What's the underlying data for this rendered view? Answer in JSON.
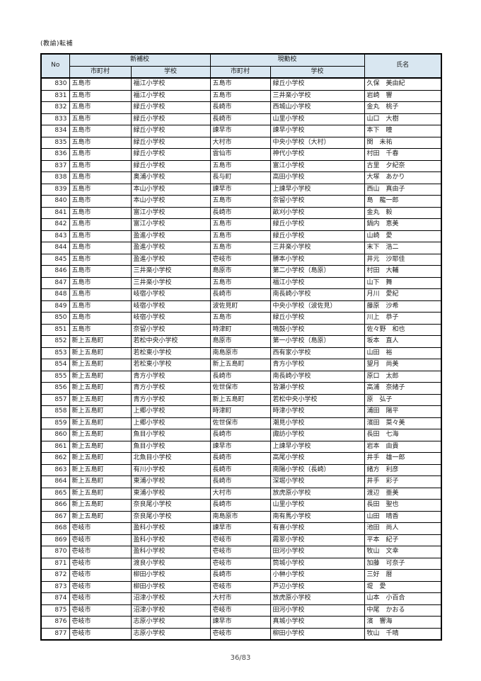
{
  "title": "(教諭)転補",
  "footer": {
    "page": "36/83"
  },
  "colors": {
    "header_bg": "#d9e7f1",
    "border": "#000000",
    "page_bg": "#ffffff"
  },
  "table": {
    "headers": {
      "no": "No",
      "new_school_group": "新補校",
      "current_school_group": "現勤校",
      "municipality_new": "市町村",
      "school_new": "学校",
      "municipality_current": "市町村",
      "school_current": "学校",
      "name": "氏名"
    },
    "rows": [
      [
        830,
        "五島市",
        "福江小学校",
        "五島市",
        "緑丘小学校",
        "久保　美由紀"
      ],
      [
        831,
        "五島市",
        "福江小学校",
        "五島市",
        "三井楽小学校",
        "岩崎　響"
      ],
      [
        832,
        "五島市",
        "緑丘小学校",
        "長崎市",
        "西城山小学校",
        "金丸　桃子"
      ],
      [
        833,
        "五島市",
        "緑丘小学校",
        "長崎市",
        "山里小学校",
        "山口　大樹"
      ],
      [
        834,
        "五島市",
        "緑丘小学校",
        "諫早市",
        "諫早小学校",
        "本下　瞳"
      ],
      [
        835,
        "五島市",
        "緑丘小学校",
        "大村市",
        "中央小学校（大村）",
        "関　未祐"
      ],
      [
        836,
        "五島市",
        "緑丘小学校",
        "雲仙市",
        "神代小学校",
        "村田　千春"
      ],
      [
        837,
        "五島市",
        "緑丘小学校",
        "五島市",
        "富江小学校",
        "古里　夕紀奈"
      ],
      [
        838,
        "五島市",
        "奥浦小学校",
        "長与町",
        "高田小学校",
        "大塚　あかり"
      ],
      [
        839,
        "五島市",
        "本山小学校",
        "諫早市",
        "上諫早小学校",
        "西山　真由子"
      ],
      [
        840,
        "五島市",
        "本山小学校",
        "五島市",
        "奈留小学校",
        "島　龍一郎"
      ],
      [
        841,
        "五島市",
        "富江小学校",
        "長崎市",
        "畝刈小学校",
        "金丸　毅"
      ],
      [
        842,
        "五島市",
        "富江小学校",
        "五島市",
        "緑丘小学校",
        "鍋内　恵美"
      ],
      [
        843,
        "五島市",
        "盈進小学校",
        "五島市",
        "緑丘小学校",
        "山崎　愛"
      ],
      [
        844,
        "五島市",
        "盈進小学校",
        "五島市",
        "三井楽小学校",
        "末下　浩二"
      ],
      [
        845,
        "五島市",
        "盈進小学校",
        "壱岐市",
        "勝本小学校",
        "井元　沙耶佳"
      ],
      [
        846,
        "五島市",
        "三井楽小学校",
        "島原市",
        "第二小学校（島原）",
        "村田　大輔"
      ],
      [
        847,
        "五島市",
        "三井楽小学校",
        "五島市",
        "福江小学校",
        "山下　舞"
      ],
      [
        848,
        "五島市",
        "岐宿小学校",
        "長崎市",
        "南長崎小学校",
        "月川　愛紀"
      ],
      [
        849,
        "五島市",
        "岐宿小学校",
        "波佐見町",
        "中央小学校（波佐見）",
        "藤原　沙希"
      ],
      [
        850,
        "五島市",
        "岐宿小学校",
        "五島市",
        "緑丘小学校",
        "川上　恭子"
      ],
      [
        851,
        "五島市",
        "奈留小学校",
        "時津町",
        "鳴鼓小学校",
        "佐々野　和也"
      ],
      [
        852,
        "新上五島町",
        "若松中央小学校",
        "島原市",
        "第一小学校（島原）",
        "坂本　直人"
      ],
      [
        853,
        "新上五島町",
        "若松東小学校",
        "南島原市",
        "西有家小学校",
        "山田　裕"
      ],
      [
        854,
        "新上五島町",
        "若松東小学校",
        "新上五島町",
        "青方小学校",
        "望月　尚美"
      ],
      [
        855,
        "新上五島町",
        "青方小学校",
        "長崎市",
        "南長崎小学校",
        "原口　太郎"
      ],
      [
        856,
        "新上五島町",
        "青方小学校",
        "佐世保市",
        "皆瀬小学校",
        "高浦　奈緒子"
      ],
      [
        857,
        "新上五島町",
        "青方小学校",
        "新上五島町",
        "若松中央小学校",
        "原　弘子"
      ],
      [
        858,
        "新上五島町",
        "上郷小学校",
        "時津町",
        "時津小学校",
        "浦田　陽平"
      ],
      [
        859,
        "新上五島町",
        "上郷小学校",
        "佐世保市",
        "潮見小学校",
        "濱田　菜々美"
      ],
      [
        860,
        "新上五島町",
        "魚目小学校",
        "長崎市",
        "諏訪小学校",
        "長田　七海"
      ],
      [
        861,
        "新上五島町",
        "魚目小学校",
        "諫早市",
        "上諫早小学校",
        "岩本　由貴"
      ],
      [
        862,
        "新上五島町",
        "北魚目小学校",
        "長崎市",
        "高尾小学校",
        "井手　雄一郎"
      ],
      [
        863,
        "新上五島町",
        "有川小学校",
        "長崎市",
        "南陽小学校（長崎）",
        "緒方　利彦"
      ],
      [
        864,
        "新上五島町",
        "東浦小学校",
        "長崎市",
        "深堀小学校",
        "井手　彩子"
      ],
      [
        865,
        "新上五島町",
        "東浦小学校",
        "大村市",
        "放虎原小学校",
        "渡辺　亜美"
      ],
      [
        866,
        "新上五島町",
        "奈良尾小学校",
        "長崎市",
        "山里小学校",
        "長田　聖也"
      ],
      [
        867,
        "新上五島町",
        "奈良尾小学校",
        "南島原市",
        "南有馬小学校",
        "山田　晴香"
      ],
      [
        868,
        "壱岐市",
        "盈科小学校",
        "諫早市",
        "有喜小学校",
        "池田　尚人"
      ],
      [
        869,
        "壱岐市",
        "盈科小学校",
        "壱岐市",
        "霞翠小学校",
        "平本　紀子"
      ],
      [
        870,
        "壱岐市",
        "盈科小学校",
        "壱岐市",
        "田河小学校",
        "牧山　文幸"
      ],
      [
        871,
        "壱岐市",
        "渡良小学校",
        "壱岐市",
        "筒城小学校",
        "加藤　可奈子"
      ],
      [
        872,
        "壱岐市",
        "柳田小学校",
        "長崎市",
        "小榊小学校",
        "三好　暦"
      ],
      [
        873,
        "壱岐市",
        "柳田小学校",
        "壱岐市",
        "芦辺小学校",
        "堤　愛"
      ],
      [
        874,
        "壱岐市",
        "沼津小学校",
        "大村市",
        "放虎原小学校",
        "山本　小百合"
      ],
      [
        875,
        "壱岐市",
        "沼津小学校",
        "壱岐市",
        "田河小学校",
        "中尾　かおる"
      ],
      [
        876,
        "壱岐市",
        "志原小学校",
        "諫早市",
        "真城小学校",
        "濱　響海"
      ],
      [
        877,
        "壱岐市",
        "志原小学校",
        "壱岐市",
        "柳田小学校",
        "牧山　千晴"
      ]
    ]
  }
}
